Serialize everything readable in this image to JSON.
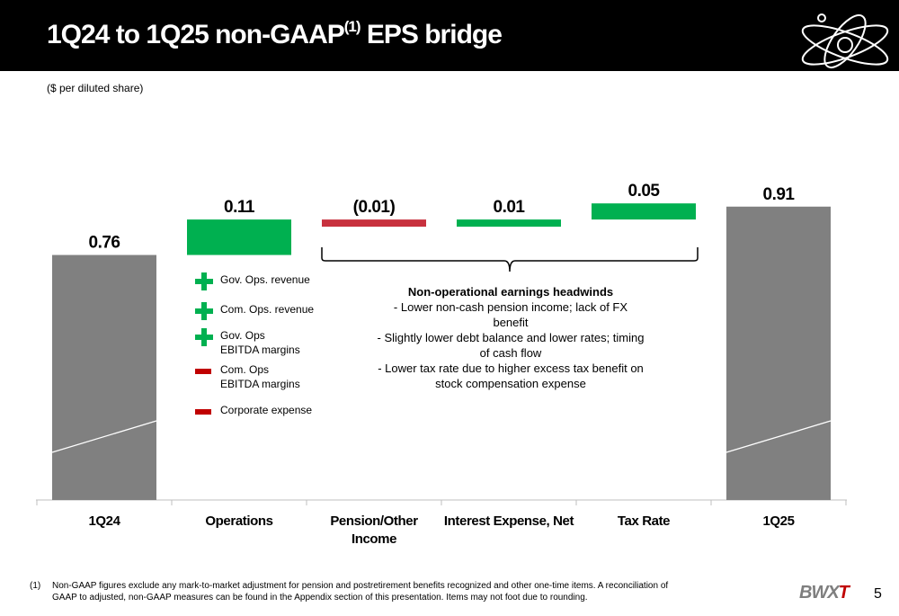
{
  "header": {
    "title": "1Q24 to 1Q25 non-GAAP",
    "title_sup": "(1)",
    "title_suffix": " EPS bridge"
  },
  "units_note": "($ per diluted share)",
  "chart_data": {
    "type": "bar",
    "subtype": "waterfall",
    "categories": [
      "1Q24",
      "Operations",
      "Pension/Other Income",
      "Interest Expense, Net",
      "Tax Rate",
      "1Q25"
    ],
    "values": [
      0.76,
      0.11,
      -0.01,
      0.01,
      0.05,
      0.91
    ],
    "labels": [
      "0.76",
      "0.11",
      "(0.01)",
      "0.01",
      "0.05",
      "0.91"
    ],
    "kinds": [
      "total",
      "increase",
      "decrease",
      "increase",
      "increase",
      "total"
    ],
    "ylim": [
      0,
      1.0
    ],
    "grid": false,
    "colors": {
      "total": "#808080",
      "increase": "#00b050",
      "decrease": "#c8313e"
    }
  },
  "legend": [
    {
      "sign": "plus",
      "label": "Gov. Ops. revenue"
    },
    {
      "sign": "plus",
      "label": "Com. Ops. revenue"
    },
    {
      "sign": "plus",
      "label": "Gov. Ops\nEBITDA margins"
    },
    {
      "sign": "minus",
      "label": "Com. Ops\nEBITDA margins"
    },
    {
      "sign": "minus",
      "label": "Corporate expense"
    }
  ],
  "headwinds": {
    "title": "Non-operational earnings headwinds",
    "items": [
      "-    Lower non-cash pension income; lack of FX benefit",
      "-    Slightly lower debt balance and lower rates; timing of cash flow",
      "-    Lower tax rate due to higher excess tax benefit on stock compensation expense"
    ]
  },
  "footnote": {
    "mark": "(1)",
    "text": "Non-GAAP figures exclude any mark-to-market adjustment for pension and postretirement benefits recognized and other one-time items.  A reconciliation of GAAP to adjusted, non-GAAP measures can be found in the Appendix section of this presentation. Items may not foot due to rounding."
  },
  "brand": {
    "main": "BWX",
    "accent": "T"
  },
  "page_number": "5"
}
